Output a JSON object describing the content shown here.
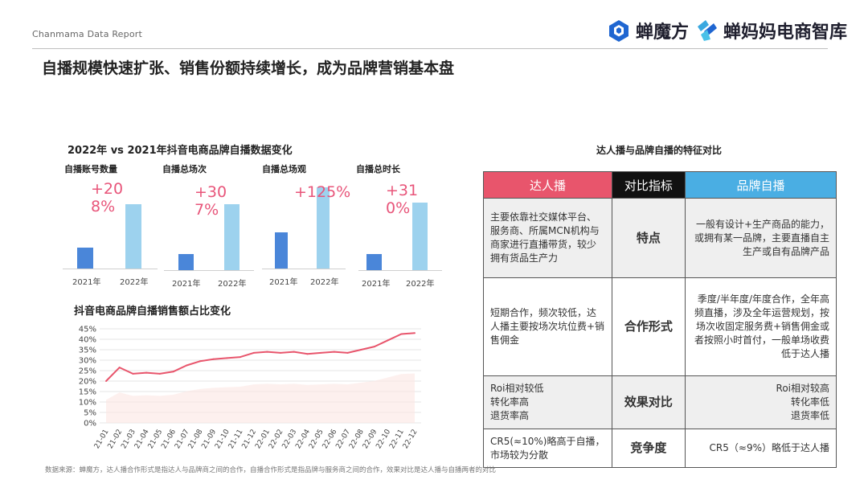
{
  "header": {
    "report_label": "Chanmama Data Report",
    "logo1_text": "蝉魔方",
    "logo2_text": "蝉妈妈电商智库"
  },
  "page_title": "自播规模快速扩张、销售份额持续增长，成为品牌营销基本盘",
  "bar_section_title": "2022年 vs 2021年抖音电商品牌自播数据变化",
  "line_section_title": "抖音电商品牌自播销售额占比变化",
  "chart_data": [
    {
      "type": "bar",
      "title": "自播账号数量",
      "annotation": "+208%",
      "categories": [
        "2021年",
        "2022年"
      ],
      "values": [
        100,
        308
      ]
    },
    {
      "type": "bar",
      "title": "自播总场次",
      "annotation": "+307%",
      "categories": [
        "2021年",
        "2022年"
      ],
      "values": [
        100,
        407
      ]
    },
    {
      "type": "bar",
      "title": "自播总场观",
      "annotation": "+125%",
      "categories": [
        "2021年",
        "2022年"
      ],
      "values": [
        100,
        225
      ]
    },
    {
      "type": "bar",
      "title": "自播总时长",
      "annotation": "+310%",
      "categories": [
        "2021年",
        "2022年"
      ],
      "values": [
        100,
        410
      ]
    },
    {
      "type": "line",
      "title": "抖音电商品牌自播销售额占比变化",
      "x": [
        "21-01",
        "21-02",
        "21-03",
        "21-04",
        "21-05",
        "21-06",
        "21-07",
        "21-08",
        "21-09",
        "21-10",
        "21-11",
        "21-12",
        "22-01",
        "22-02",
        "22-03",
        "22-04",
        "22-05",
        "22-06",
        "22-07",
        "22-08",
        "22-09",
        "22-10",
        "22-11",
        "22-12"
      ],
      "series": [
        {
          "values": [
            20,
            26.5,
            23.5,
            24,
            23.5,
            24.5,
            27.5,
            29.5,
            30.5,
            31,
            31.5,
            33.5,
            34,
            33.5,
            34,
            33,
            33.5,
            34,
            33.5,
            35,
            36.5,
            39.5,
            42.5,
            43
          ]
        }
      ],
      "yticks": [
        "45%",
        "40%",
        "35%",
        "30%",
        "25%",
        "20%",
        "15%",
        "10%",
        "5%",
        "0%"
      ],
      "ylim": [
        0,
        45
      ],
      "grid": true
    }
  ],
  "table": {
    "title": "达人播与品牌自播的特征对比",
    "headers": [
      "达人播",
      "对比指标",
      "品牌自播"
    ],
    "rows": [
      {
        "left": "主要依靠社交媒体平台、服务商、所属MCN机构与商家进行直播带货，较少拥有货品生产力",
        "mid": "特点",
        "right": "一般有设计+生产商品的能力，或拥有某一品牌，主要直播自主生产或自有品牌产品"
      },
      {
        "left": "短期合作，频次较低，达人播主要按场次坑位费+销售佣金",
        "mid": "合作形式",
        "right": "季度/半年度/年度合作，全年高频直播，涉及全年运营规划，按场次收固定服务费+销售佣金或者按照小时首付，一般单场收费低于达人播"
      },
      {
        "left": "Roi相对较低\n转化率高\n退货率高",
        "mid": "效果对比",
        "right": "Roi相对较高\n转化率低\n退货率低"
      },
      {
        "left": "CR5(≈10%)略高于自播，市场较为分散",
        "mid": "竞争度",
        "right": "CR5（≈9%）略低于达人播"
      }
    ]
  },
  "footnote": "数据来源：蝉魔方，达人播合作形式是指达人与品牌商之间的合作，自播合作形式是指品牌与服务商之间的合作，效果对比是达人播与自播两者的对比",
  "colors": {
    "accent_red": "#e8556c",
    "growth_pink": "#e8557a",
    "bar_2021": "#4a86d9",
    "bar_2022": "#9dd2ee",
    "header_blue": "#4aaee3",
    "line": "#e8556c"
  }
}
